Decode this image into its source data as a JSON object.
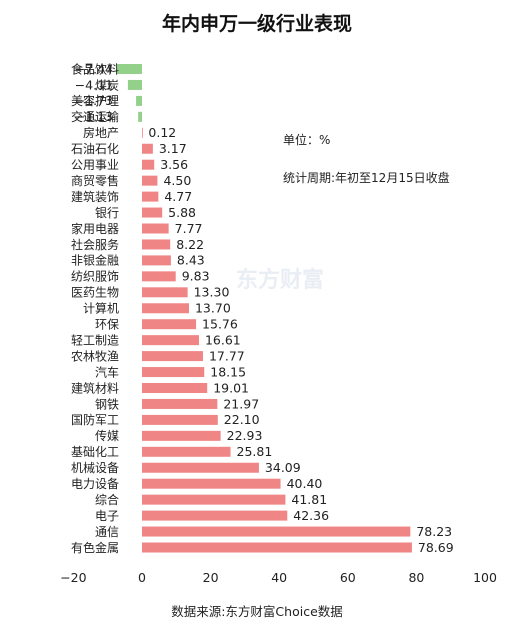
{
  "chart_data": {
    "type": "bar",
    "orientation": "horizontal",
    "title": "年内申万一级行业表现",
    "unit_note": "单位：%",
    "period_note": "统计周期:年初至12月15日收盘",
    "source": "数据来源:东方财富Choice数据",
    "watermark": "东方财富",
    "xlim": [
      -20,
      100
    ],
    "xticks": [
      -20,
      0,
      20,
      40,
      60,
      80,
      100
    ],
    "xtick_labels": [
      "−20",
      "0",
      "20",
      "40",
      "60",
      "80",
      "100"
    ],
    "colors": {
      "positive": "#f08585",
      "negative": "#93d18a"
    },
    "categories": [
      "食品饮料",
      "煤炭",
      "美容护理",
      "交通运输",
      "房地产",
      "石油石化",
      "公用事业",
      "商贸零售",
      "建筑装饰",
      "银行",
      "家用电器",
      "社会服务",
      "非银金融",
      "纺织服饰",
      "医药生物",
      "计算机",
      "环保",
      "轻工制造",
      "农林牧渔",
      "汽车",
      "建筑材料",
      "钢铁",
      "国防军工",
      "传媒",
      "基础化工",
      "机械设备",
      "电力设备",
      "综合",
      "电子",
      "通信",
      "有色金属"
    ],
    "values": [
      -7.44,
      -4.11,
      -1.73,
      -1.13,
      0.12,
      3.17,
      3.56,
      4.5,
      4.77,
      5.88,
      7.77,
      8.22,
      8.43,
      9.83,
      13.3,
      13.7,
      15.76,
      16.61,
      17.77,
      18.15,
      19.01,
      21.97,
      22.1,
      22.93,
      25.81,
      34.09,
      40.4,
      41.81,
      42.36,
      78.23,
      78.69
    ],
    "value_labels": [
      "−7.44",
      "−4.11",
      "−1.73",
      "−1.13",
      "0.12",
      "3.17",
      "3.56",
      "4.50",
      "4.77",
      "5.88",
      "7.77",
      "8.22",
      "8.43",
      "9.83",
      "13.30",
      "13.70",
      "15.76",
      "16.61",
      "17.77",
      "18.15",
      "19.01",
      "21.97",
      "22.10",
      "22.93",
      "25.81",
      "34.09",
      "40.40",
      "41.81",
      "42.36",
      "78.23",
      "78.69"
    ]
  }
}
